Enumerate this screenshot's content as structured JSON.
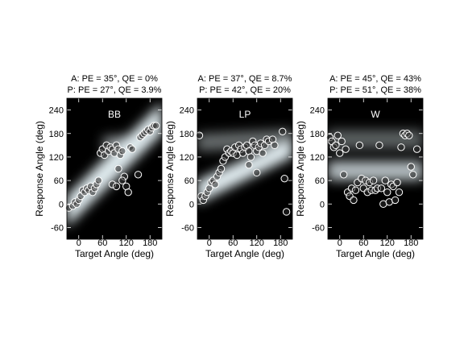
{
  "chart_data": [
    {
      "type": "scatter",
      "label": "BB",
      "annotations": [
        "A: PE = 35°, QE = 0%",
        "P: PE = 27°, QE = 3.9%"
      ],
      "x_label": "Target Angle (deg)",
      "y_label": "Response Angle (deg)",
      "xlim": [
        -30,
        210
      ],
      "ylim": [
        -90,
        270
      ],
      "xticks": [
        0,
        60,
        120,
        180
      ],
      "yticks": [
        -60,
        0,
        60,
        120,
        180,
        240
      ],
      "color": "#ffffff",
      "x": [
        -25,
        -15,
        -10,
        -5,
        0,
        5,
        10,
        15,
        20,
        25,
        30,
        35,
        40,
        45,
        50,
        55,
        60,
        65,
        70,
        75,
        80,
        85,
        90,
        95,
        100,
        105,
        110,
        115,
        120,
        125,
        130,
        135,
        150,
        155,
        160,
        165,
        170,
        175,
        180,
        185,
        190,
        195,
        85,
        95,
        100,
        110
      ],
      "y": [
        -10,
        -5,
        5,
        0,
        10,
        20,
        35,
        30,
        40,
        35,
        45,
        30,
        40,
        50,
        60,
        130,
        140,
        125,
        150,
        135,
        145,
        140,
        130,
        150,
        140,
        125,
        135,
        70,
        45,
        30,
        145,
        140,
        75,
        170,
        175,
        180,
        185,
        190,
        185,
        195,
        200,
        200,
        50,
        45,
        90,
        60
      ]
    },
    {
      "type": "scatter",
      "label": "LP",
      "annotations": [
        "A: PE = 37°, QE = 8.7%",
        "P: PE = 42°, QE = 20%"
      ],
      "x_label": "Target Angle (deg)",
      "y_label": "Response Angle (deg)",
      "xlim": [
        -30,
        210
      ],
      "ylim": [
        -90,
        270
      ],
      "xticks": [
        0,
        60,
        120,
        180
      ],
      "yticks": [
        -60,
        0,
        60,
        120,
        180,
        240
      ],
      "color": "#ffffff",
      "x": [
        -25,
        -20,
        -15,
        -10,
        -5,
        0,
        5,
        10,
        15,
        20,
        25,
        30,
        35,
        40,
        45,
        50,
        55,
        60,
        65,
        70,
        75,
        80,
        85,
        90,
        95,
        100,
        105,
        110,
        115,
        120,
        125,
        130,
        135,
        140,
        145,
        150,
        160,
        165,
        185,
        190,
        195,
        100,
        120
      ],
      "y": [
        175,
        20,
        10,
        20,
        30,
        40,
        55,
        60,
        50,
        70,
        80,
        90,
        110,
        120,
        140,
        130,
        135,
        130,
        145,
        125,
        150,
        140,
        130,
        145,
        150,
        135,
        120,
        160,
        150,
        135,
        145,
        155,
        130,
        150,
        165,
        160,
        165,
        150,
        185,
        65,
        -20,
        100,
        80
      ]
    },
    {
      "type": "scatter",
      "label": "W",
      "annotations": [
        "A: PE = 45°, QE = 43%",
        "P: PE = 51°, QE = 38%"
      ],
      "x_label": "Target Angle (deg)",
      "y_label": "Response Angle (deg)",
      "xlim": [
        -30,
        210
      ],
      "ylim": [
        -90,
        270
      ],
      "xticks": [
        0,
        60,
        120,
        180
      ],
      "yticks": [
        -60,
        0,
        60,
        120,
        180,
        240
      ],
      "color": "#ffffff",
      "x": [
        -25,
        -20,
        -15,
        -10,
        -5,
        0,
        5,
        10,
        15,
        20,
        25,
        30,
        35,
        40,
        45,
        50,
        55,
        60,
        65,
        70,
        75,
        80,
        85,
        90,
        95,
        100,
        105,
        110,
        115,
        120,
        125,
        130,
        135,
        140,
        145,
        150,
        155,
        160,
        165,
        170,
        175,
        180,
        185,
        195
      ],
      "y": [
        170,
        160,
        145,
        150,
        175,
        130,
        160,
        75,
        140,
        30,
        20,
        40,
        10,
        35,
        55,
        150,
        65,
        40,
        60,
        30,
        55,
        35,
        60,
        35,
        40,
        150,
        40,
        0,
        60,
        30,
        5,
        50,
        45,
        10,
        55,
        30,
        145,
        180,
        175,
        180,
        175,
        95,
        75,
        140
      ]
    }
  ]
}
